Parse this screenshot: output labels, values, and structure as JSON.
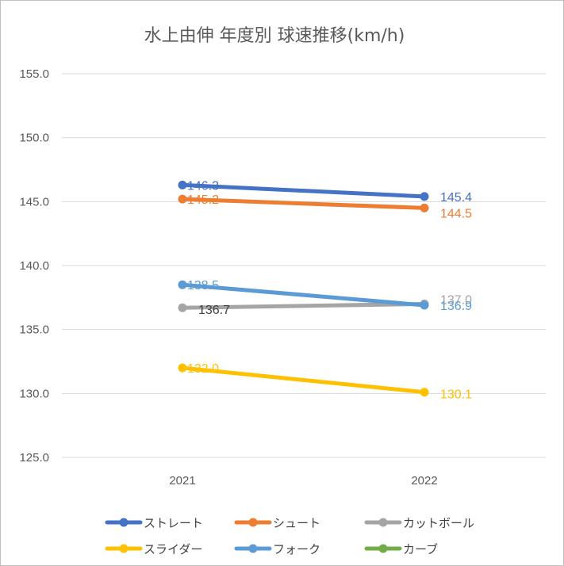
{
  "chart_data": {
    "type": "line",
    "title": "水上由伸 年度別 球速推移(km/h)",
    "categories": [
      "2021",
      "2022"
    ],
    "ylim": [
      125,
      155
    ],
    "yticks": [
      "125.0",
      "130.0",
      "135.0",
      "140.0",
      "145.0",
      "150.0",
      "155.0"
    ],
    "grid": true,
    "legend_position": "bottom",
    "series": [
      {
        "name": "ストレート",
        "color": "#4472c4",
        "values": [
          146.3,
          145.4
        ],
        "labels": [
          "146.3",
          "145.4"
        ]
      },
      {
        "name": "シュート",
        "color": "#ed7d31",
        "values": [
          145.2,
          144.5
        ],
        "labels": [
          "145.2",
          "144.5"
        ]
      },
      {
        "name": "カットボール",
        "color": "#a5a5a5",
        "values": [
          136.7,
          137.0
        ],
        "labels": [
          "136.7",
          "137.0"
        ]
      },
      {
        "name": "スライダー",
        "color": "#ffc000",
        "values": [
          132.0,
          130.1
        ],
        "labels": [
          "132.0",
          "130.1"
        ]
      },
      {
        "name": "フォーク",
        "color": "#5b9bd5",
        "values": [
          138.5,
          136.9
        ],
        "labels": [
          "138.5",
          "136.9"
        ]
      },
      {
        "name": "カーブ",
        "color": "#70ad47",
        "values": [
          null,
          null
        ],
        "labels": [
          "",
          ""
        ]
      }
    ]
  }
}
